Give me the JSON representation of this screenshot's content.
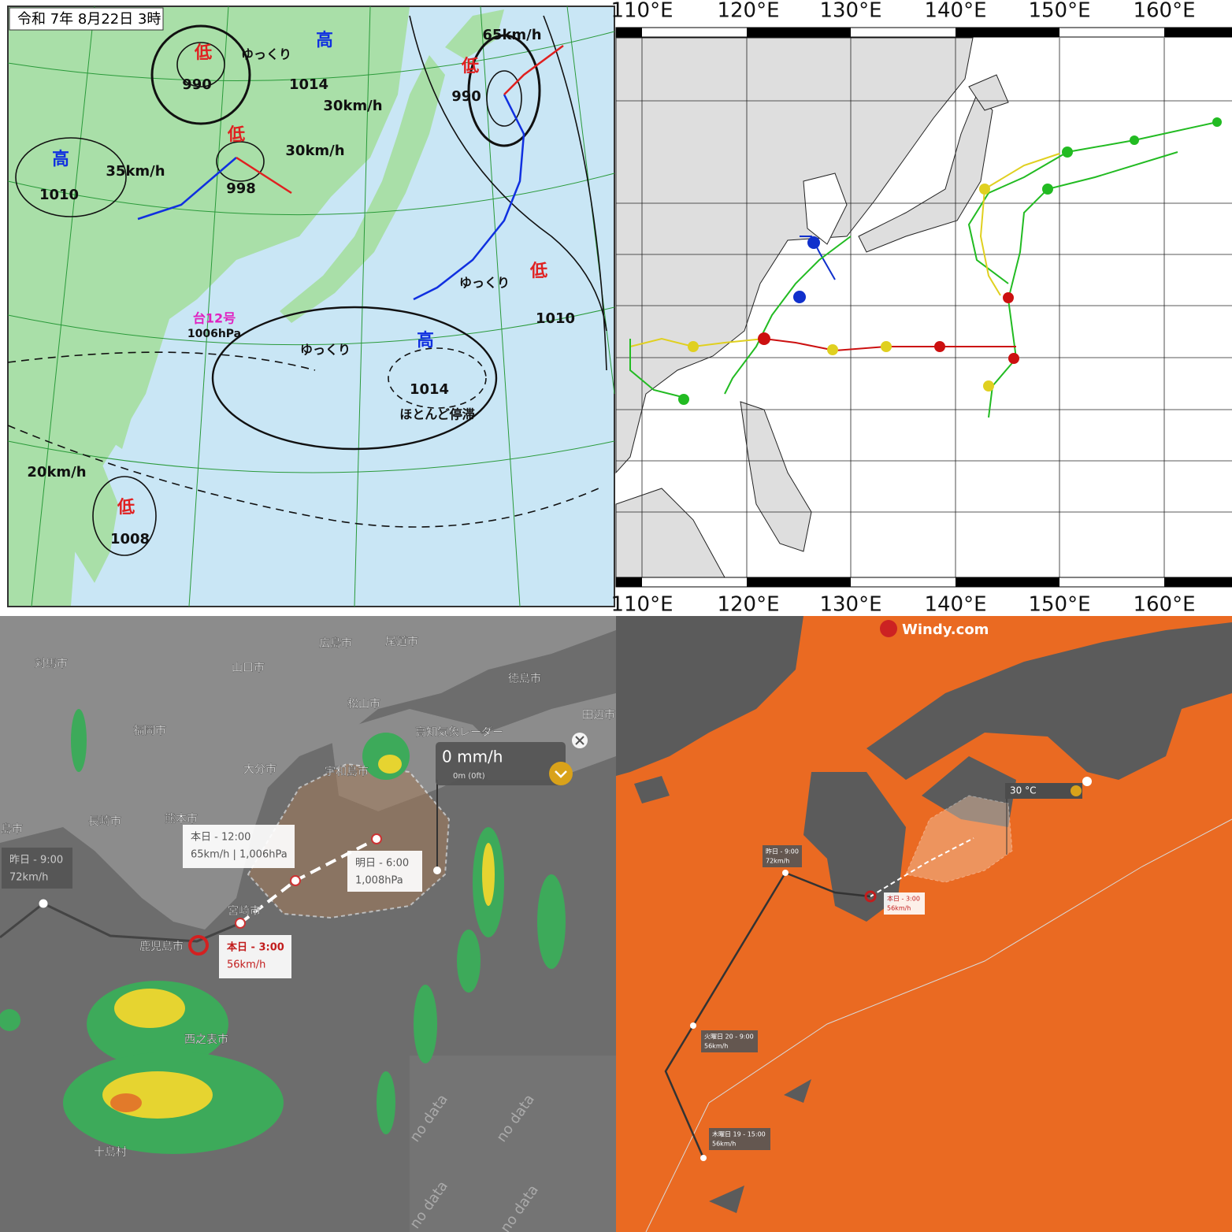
{
  "weather_chart": {
    "date": "令和 7年 8月22日 3時",
    "labels": [
      "低",
      "990",
      "ゆっくり",
      "高",
      "1014",
      "30km/h",
      "低",
      "65km/h",
      "990",
      "高",
      "35km/h",
      "1010",
      "低",
      "30km/h",
      "998",
      "台12号",
      "1006hPa",
      "ゆっくり",
      "高",
      "1014",
      "ほとんど停滞",
      "ゆっくり",
      "低",
      "1010",
      "20km/h",
      "低",
      "1008"
    ]
  },
  "track_map": {
    "lon_labels": [
      "110°E",
      "120°E",
      "130°E",
      "140°E",
      "150°E",
      "160°E"
    ]
  },
  "radar_map": {
    "places": [
      "対馬市",
      "広島市",
      "尾道市",
      "山口市",
      "徳島市",
      "松山市",
      "福岡市",
      "田辺市",
      "高知気象レーダー",
      "大分市",
      "宇和島市",
      "熊本市",
      "長崎市",
      "島市",
      "宮崎市",
      "鹿児島市",
      "西之表市",
      "十島村"
    ],
    "popups": [
      {
        "time": "本日 - 12:00",
        "detail": "65km/h | 1,006hPa"
      },
      {
        "time": "明日 - 6:00",
        "detail": "1,008hPa"
      },
      {
        "time": "昨日 - 9:00",
        "detail": "72km/h"
      },
      {
        "time": "本日 - 3:00",
        "detail": "56km/h"
      }
    ],
    "rain": "0 mm/h",
    "elevation": "0m (0ft)",
    "no_data": [
      "no data",
      "no data",
      "no data",
      "no data"
    ]
  },
  "windy_map": {
    "brand": "Windy.com",
    "temperature": "30 °C",
    "popups": [
      {
        "time": "昨日 - 9:00",
        "detail": "72km/h"
      },
      {
        "time": "本日 - 3:00",
        "detail": "56km/h"
      },
      {
        "time": "火曜日 20 - 9:00",
        "detail": "56km/h"
      },
      {
        "time": "木曜日 19 - 15:00",
        "detail": "56km/h"
      }
    ]
  }
}
